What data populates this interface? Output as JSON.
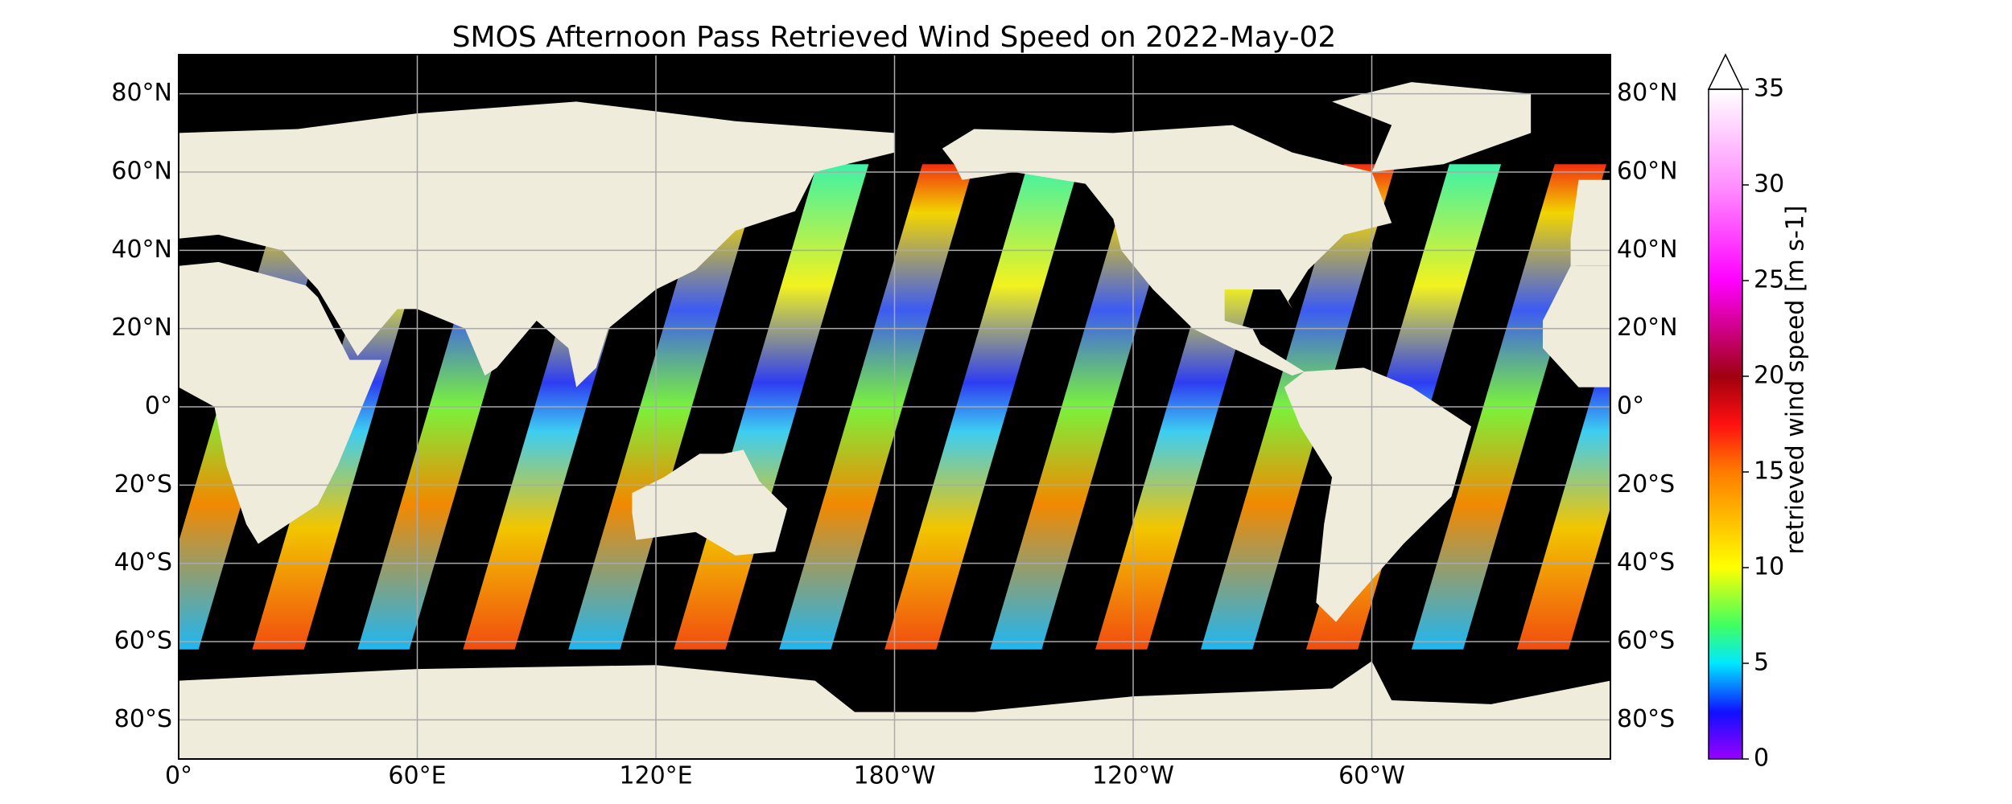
{
  "title": "SMOS Afternoon Pass Retrieved Wind Speed on 2022-May-02",
  "map": {
    "lon_range": [
      0,
      360
    ],
    "lat_range": [
      -90,
      90
    ],
    "lon_ticks": [
      {
        "value": 0,
        "label": "0°"
      },
      {
        "value": 60,
        "label": "60°E"
      },
      {
        "value": 120,
        "label": "120°E"
      },
      {
        "value": 180,
        "label": "180°W"
      },
      {
        "value": 240,
        "label": "120°W"
      },
      {
        "value": 300,
        "label": "60°W"
      }
    ],
    "lat_ticks": [
      {
        "value": 80,
        "label": "80°N"
      },
      {
        "value": 60,
        "label": "60°N"
      },
      {
        "value": 40,
        "label": "40°N"
      },
      {
        "value": 20,
        "label": "20°N"
      },
      {
        "value": 0,
        "label": "0°"
      },
      {
        "value": -20,
        "label": "20°S"
      },
      {
        "value": -40,
        "label": "40°S"
      },
      {
        "value": -60,
        "label": "60°S"
      },
      {
        "value": -80,
        "label": "80°S"
      }
    ],
    "grid": true
  },
  "colorbar": {
    "label": "retrieved wind speed [m s-1]",
    "range": [
      0,
      35
    ],
    "ticks": [
      0,
      5,
      10,
      15,
      20,
      25,
      30,
      35
    ],
    "extend": "max"
  }
}
